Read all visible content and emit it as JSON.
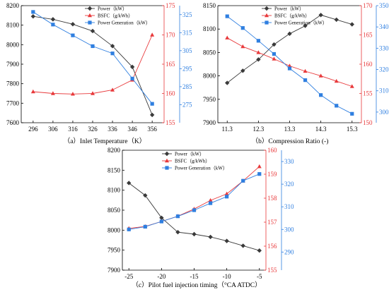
{
  "colors": {
    "power": "#3a3a3a",
    "bsfc": "#e8393b",
    "generation": "#2f7fe0",
    "axis": "#000000"
  },
  "legend": {
    "power": "Power（kW）",
    "bsfc": "BSFC（g/kWh）",
    "generation": "Power Generation（kW）"
  },
  "chart_data": [
    {
      "id": "a",
      "type": "line",
      "caption": "（a）Inlet Temperature（K）",
      "x": [
        296,
        306,
        316,
        326,
        336,
        346,
        356
      ],
      "x_ticks": [
        "296",
        "306",
        "316",
        "326",
        "336",
        "346",
        "356"
      ],
      "y_left": {
        "range": [
          7600,
          8200
        ],
        "ticks": [
          "7600",
          "7700",
          "7800",
          "7900",
          "8000",
          "8100",
          "8200"
        ]
      },
      "y_right1": {
        "range": [
          155,
          175
        ],
        "ticks": [
          "155",
          "160",
          "165",
          "170",
          "175"
        ]
      },
      "y_right2": {
        "range": [
          265,
          330
        ],
        "ticks": [
          "275",
          "285",
          "295",
          "305",
          "315",
          "325"
        ]
      },
      "series": [
        {
          "name": "Power（kW）",
          "axis": "left",
          "values": [
            8145,
            8130,
            8105,
            8070,
            7993,
            7886,
            7640
          ]
        },
        {
          "name": "BSFC（g/kWh）",
          "axis": "right1",
          "values": [
            160.3,
            160.0,
            159.9,
            160.0,
            160.6,
            162.3,
            170.0
          ]
        },
        {
          "name": "Power Generation（kW）",
          "axis": "right2",
          "values": [
            326.5,
            319.5,
            313.5,
            307.5,
            303.5,
            289.5,
            275.5
          ]
        }
      ]
    },
    {
      "id": "b",
      "type": "line",
      "caption": "（b）Compression Ratio (-)",
      "x": [
        11.3,
        11.8,
        12.3,
        12.8,
        13.3,
        13.8,
        14.3,
        14.8,
        15.3
      ],
      "x_ticks": [
        "11.3",
        "12.3",
        "13.3",
        "14.3",
        "15.3"
      ],
      "y_left": {
        "range": [
          7900,
          8150
        ],
        "ticks": [
          "7900",
          "7950",
          "8000",
          "8050",
          "8100",
          "8150"
        ]
      },
      "y_right1": {
        "range": [
          150,
          170
        ],
        "ticks": [
          "150",
          "155",
          "160",
          "165",
          "170"
        ]
      },
      "y_right2": {
        "range": [
          295,
          350
        ],
        "ticks": [
          "300",
          "310",
          "320",
          "330",
          "340",
          "350"
        ]
      },
      "series": [
        {
          "name": "Power（kW）",
          "axis": "left",
          "values": [
            7985,
            8011,
            8035,
            8067,
            8090,
            8107,
            8130,
            8120,
            8110
          ]
        },
        {
          "name": "BSFC（g/kWh）",
          "axis": "right1",
          "values": [
            164.5,
            163.0,
            162.0,
            160.9,
            159.7,
            158.8,
            158.0,
            157.1,
            156.2
          ]
        },
        {
          "name": "Power Generation（kW）",
          "axis": "right2",
          "values": [
            345.0,
            339.5,
            333.5,
            327.3,
            320.5,
            315.0,
            308.0,
            303.0,
            299.2
          ]
        }
      ]
    },
    {
      "id": "c",
      "type": "line",
      "caption": "（c）Pilot fuel injection timing（°CA ATDC）",
      "x": [
        -25,
        -22.5,
        -20,
        -17.5,
        -15,
        -12.5,
        -10,
        -7.5,
        -5
      ],
      "x_ticks": [
        "-25",
        "-20",
        "-15",
        "-10",
        "-5"
      ],
      "y_left": {
        "range": [
          7900,
          8200
        ],
        "ticks": [
          "7900",
          "7950",
          "8000",
          "8050",
          "8100",
          "8150",
          "8200"
        ]
      },
      "y_right1": {
        "range": [
          155,
          160
        ],
        "ticks": [
          "155",
          "156",
          "157",
          "158",
          "159",
          "160"
        ]
      },
      "y_right2": {
        "range": [
          282,
          335
        ],
        "ticks": [
          "290",
          "300",
          "310",
          "320",
          "330"
        ]
      },
      "series": [
        {
          "name": "Power（kW）",
          "axis": "left",
          "values": [
            8118,
            8087,
            8031,
            7995,
            7990,
            7983,
            7973,
            7961,
            7949
          ]
        },
        {
          "name": "BSFC（g/kWh）",
          "axis": "right1",
          "values": [
            156.74,
            156.82,
            157.03,
            157.25,
            157.55,
            157.91,
            158.18,
            158.72,
            159.32
          ]
        },
        {
          "name": "Power Generation（kW）",
          "axis": "right2",
          "values": [
            300.0,
            301.2,
            303.5,
            305.8,
            308.5,
            311.6,
            314.5,
            321.5,
            324.5
          ]
        }
      ]
    }
  ]
}
